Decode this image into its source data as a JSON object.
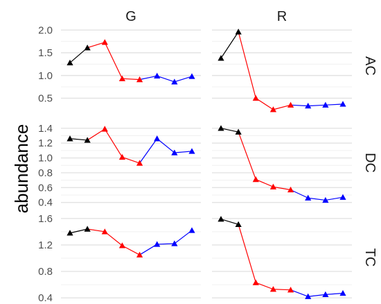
{
  "chart_data": {
    "type": "line",
    "ylabel": "abundance",
    "xlabel": "",
    "grid": true,
    "legend": "none",
    "colors": {
      "black": "#000000",
      "red": "#ff0000",
      "blue": "#0000ff"
    },
    "col_facets": [
      "G",
      "R"
    ],
    "row_facets": [
      "AC",
      "DC",
      "TC"
    ],
    "rows": [
      {
        "facet": "AC",
        "ylim": [
          0.37,
          2.05
        ],
        "y_ticks": [
          2.0,
          1.5,
          1.0,
          0.5
        ],
        "y_tick_labels": [
          "2.0",
          "1.5",
          "1.0",
          "0.5"
        ],
        "minor_ticks": [
          1.75,
          1.25,
          0.75
        ],
        "panels": {
          "G": [
            1.28,
            1.61,
            1.73,
            0.93,
            0.91,
            0.99,
            0.86,
            0.98
          ],
          "R": [
            1.38,
            1.96,
            0.5,
            0.25,
            0.35,
            0.33,
            0.35,
            0.37
          ]
        }
      },
      {
        "facet": "DC",
        "ylim": [
          0.35,
          1.52
        ],
        "y_ticks": [
          1.4,
          1.2,
          1.0,
          0.8,
          0.6,
          0.4
        ],
        "y_tick_labels": [
          "1.4",
          "1.2",
          "1.0",
          "0.8",
          "0.6",
          "0.4"
        ],
        "minor_ticks": [
          1.3,
          1.1,
          0.9,
          0.7,
          0.5
        ],
        "panels": {
          "G": [
            1.26,
            1.24,
            1.39,
            1.01,
            0.93,
            1.26,
            1.07,
            1.09
          ],
          "R": [
            1.4,
            1.35,
            0.71,
            0.61,
            0.57,
            0.46,
            0.43,
            0.47
          ]
        }
      },
      {
        "facet": "TC",
        "ylim": [
          0.37,
          1.65
        ],
        "y_ticks": [
          1.6,
          1.2,
          0.8,
          0.4
        ],
        "y_tick_labels": [
          "1.6",
          "1.2",
          "0.8",
          "0.4"
        ],
        "minor_ticks": [
          1.4,
          1.0,
          0.6
        ],
        "panels": {
          "G": [
            1.38,
            1.44,
            1.4,
            1.19,
            1.05,
            1.21,
            1.22,
            1.42
          ],
          "R": [
            1.59,
            1.51,
            0.63,
            0.53,
            0.52,
            0.42,
            0.45,
            0.47
          ]
        }
      }
    ],
    "point_colors": [
      "#000000",
      "#000000",
      "#ff0000",
      "#ff0000",
      "#ff0000",
      "#0000ff",
      "#0000ff",
      "#0000ff"
    ],
    "marker": "triangle"
  }
}
